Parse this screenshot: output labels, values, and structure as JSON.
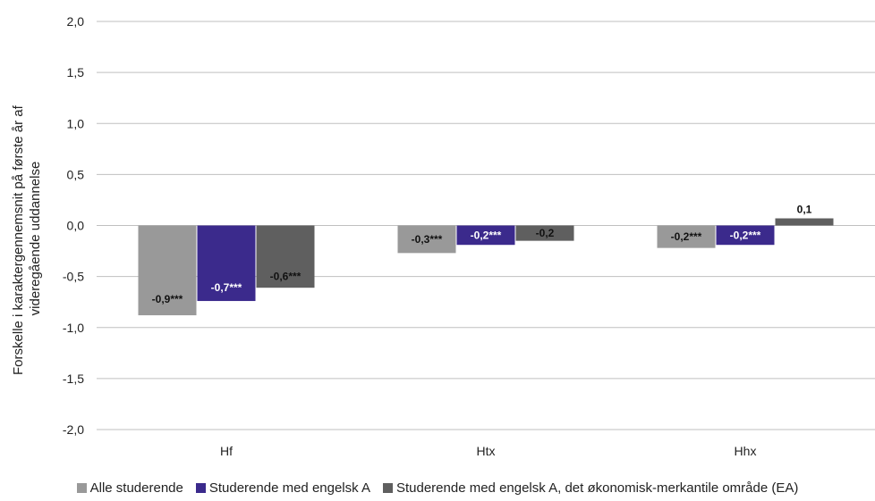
{
  "chart_data": {
    "type": "bar",
    "ylabel_lines": [
      "Forskelle i karaktergennemsnit på første år af",
      "videregående uddannelse"
    ],
    "categories": [
      "Hf",
      "Htx",
      "Hhx"
    ],
    "y_ticks": [
      "2,0",
      "1,5",
      "1,0",
      "0,5",
      "0,0",
      "-0,5",
      "-1,0",
      "-1,5",
      "-2,0"
    ],
    "ylim": [
      -2.0,
      2.0
    ],
    "grid": true,
    "legend_position": "bottom",
    "series": [
      {
        "name": "Alle studerende",
        "color": "#999999",
        "values": [
          -0.88,
          -0.27,
          -0.22
        ],
        "labels": [
          "-0,9***",
          "-0,3***",
          "-0,2***"
        ],
        "label_color": "#111111"
      },
      {
        "name": "Studerende med engelsk A",
        "color": "#3b2a8c",
        "values": [
          -0.74,
          -0.19,
          -0.19
        ],
        "labels": [
          "-0,7***",
          "-0,2***",
          "-0,2***"
        ],
        "label_color": "#ffffff"
      },
      {
        "name": "Studerende med engelsk A, det økonomisk-merkantile område (EA)",
        "color": "#5f5f5f",
        "values": [
          -0.61,
          -0.15,
          0.07
        ],
        "labels": [
          "-0,6***",
          "-0,2",
          "0,1"
        ],
        "label_color": "#111111"
      }
    ]
  }
}
